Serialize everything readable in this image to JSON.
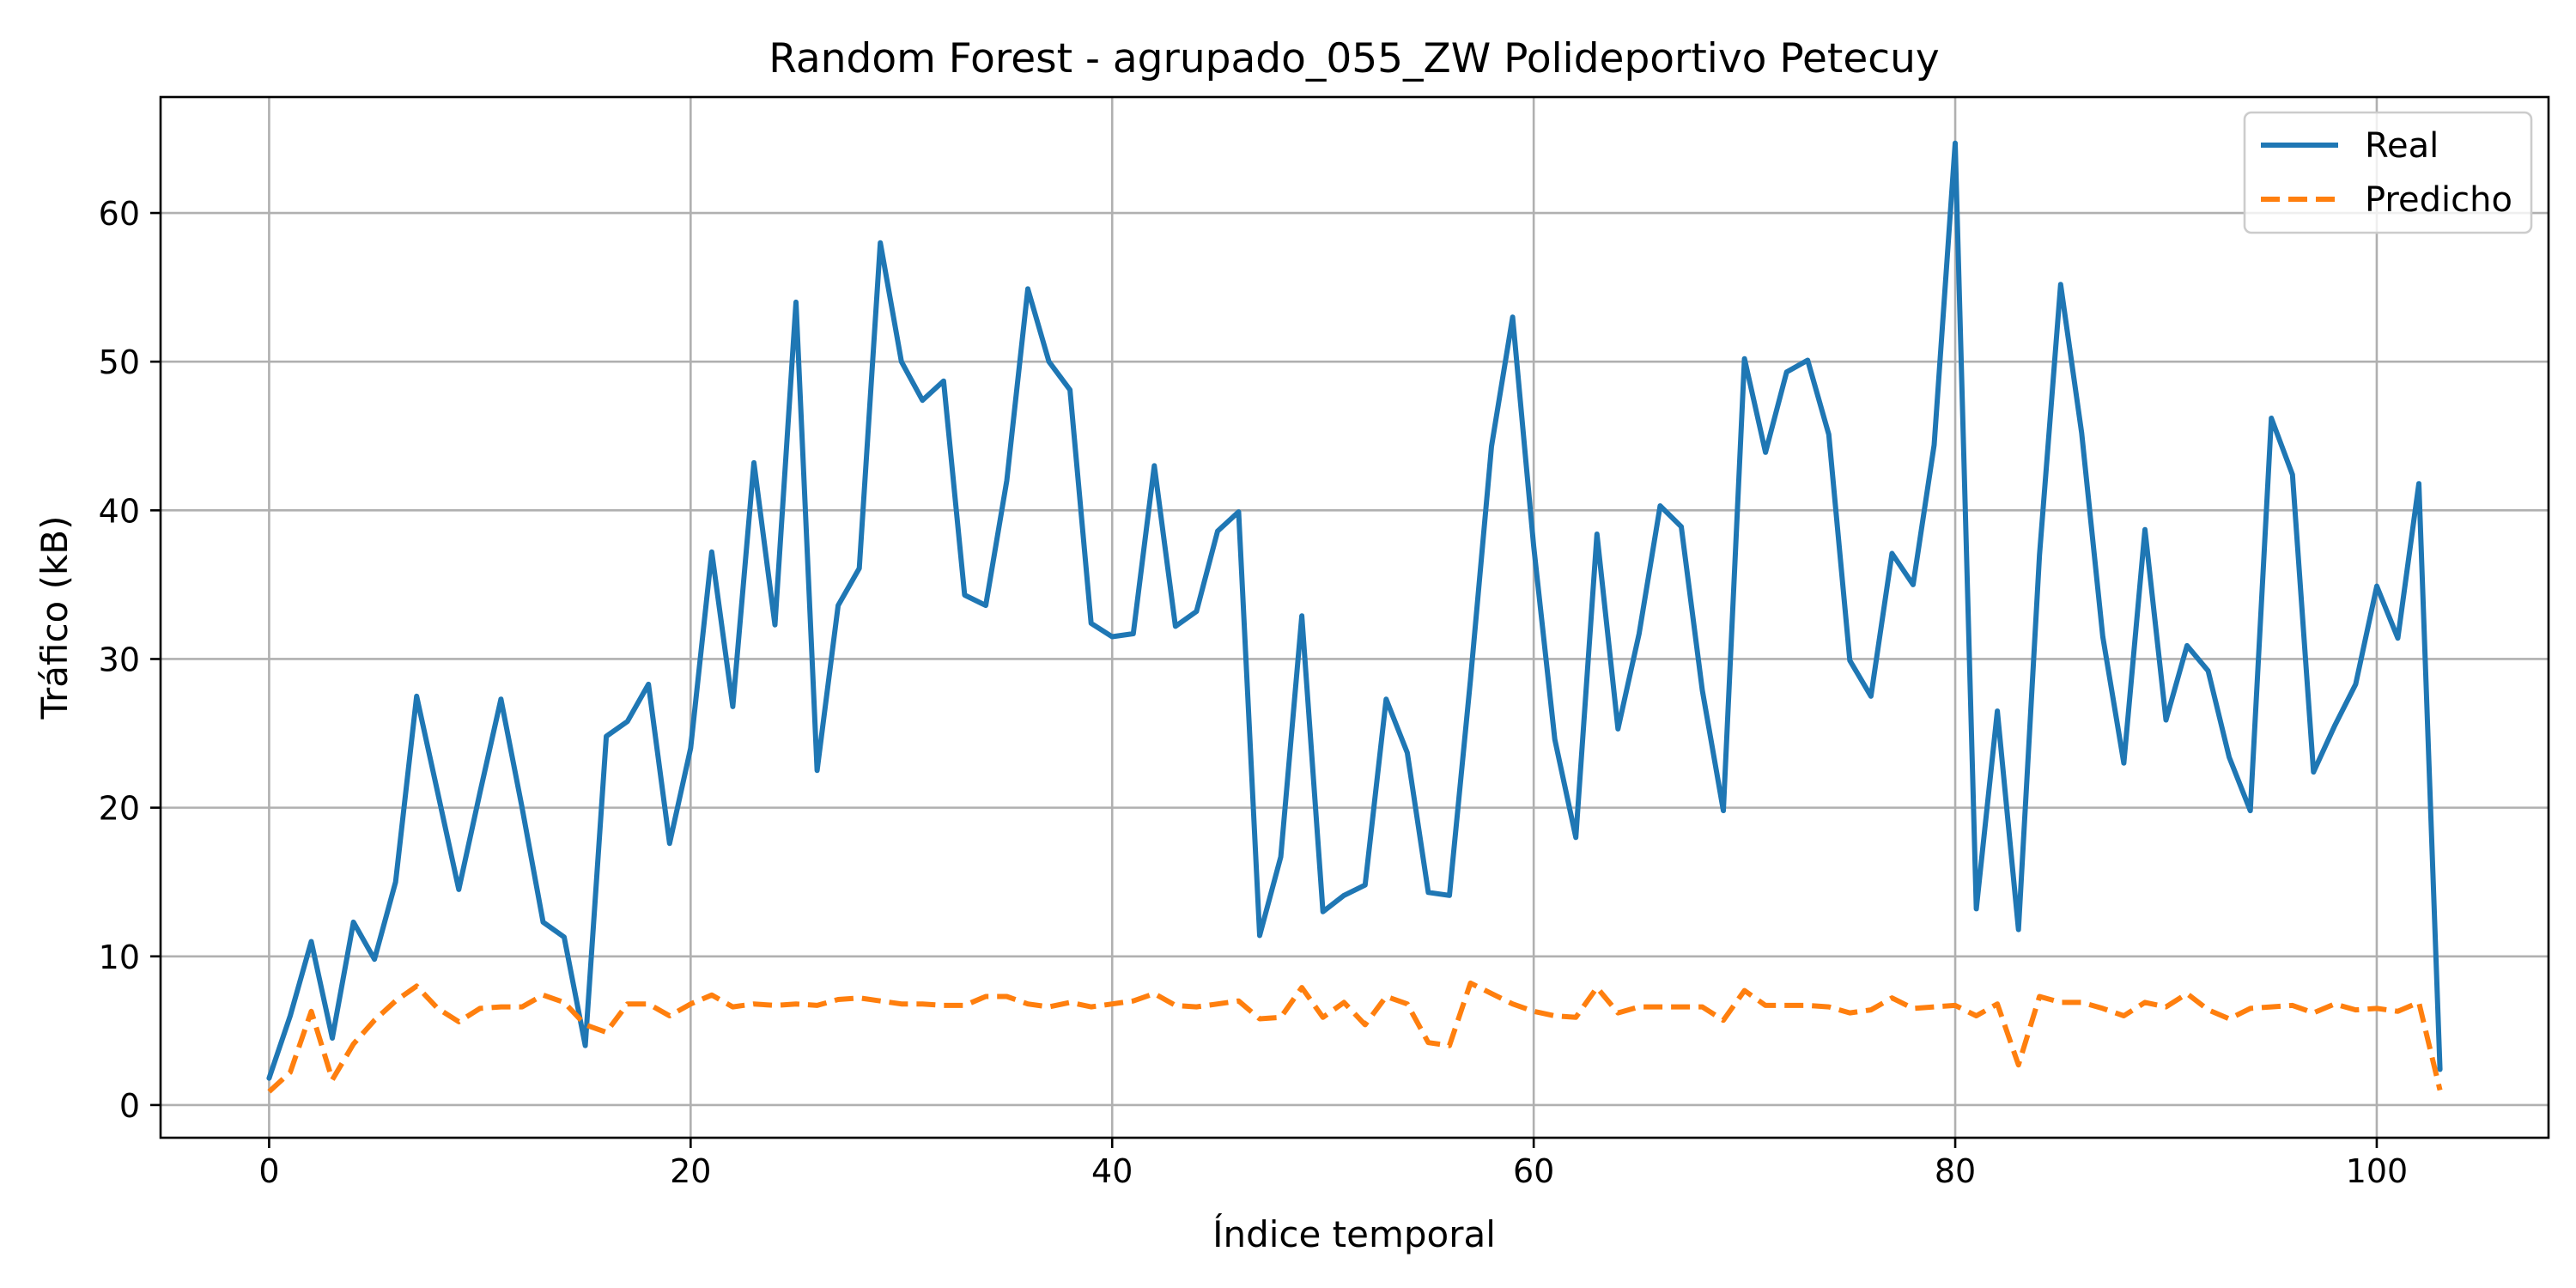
{
  "chart_data": {
    "type": "line",
    "title": "Random Forest - agrupado_055_ZW Polideportivo Petecuy",
    "xlabel": "Índice temporal",
    "ylabel": "Tráfico (kB)",
    "xlim": [
      -5.15,
      108.15
    ],
    "ylim": [
      -2.2,
      67.8
    ],
    "x_ticks": [
      0,
      20,
      40,
      60,
      80,
      100
    ],
    "y_ticks": [
      0,
      10,
      20,
      30,
      40,
      50,
      60
    ],
    "grid": true,
    "legend_position": "top-right",
    "series": [
      {
        "name": "Real",
        "color": "#1f77b4",
        "style": "solid",
        "values": [
          1.8,
          6.0,
          11.0,
          4.5,
          12.3,
          9.8,
          15.0,
          27.5,
          21.0,
          14.5,
          21.0,
          27.3,
          20.0,
          12.3,
          11.3,
          4.0,
          24.8,
          25.8,
          28.3,
          17.6,
          24.0,
          37.2,
          26.8,
          43.2,
          32.3,
          54.0,
          22.5,
          33.6,
          36.1,
          58.0,
          50.0,
          47.4,
          48.7,
          34.3,
          33.6,
          42.0,
          54.9,
          50.0,
          48.1,
          32.4,
          31.5,
          31.7,
          43.0,
          32.2,
          33.2,
          38.6,
          39.9,
          11.4,
          16.7,
          32.9,
          13.0,
          14.1,
          14.8,
          27.3,
          23.7,
          14.3,
          14.1,
          28.6,
          44.3,
          53.0,
          37.6,
          24.6,
          18.0,
          38.4,
          25.3,
          31.7,
          40.3,
          38.9,
          27.9,
          19.8,
          50.2,
          43.9,
          49.3,
          50.1,
          45.1,
          29.9,
          27.5,
          37.1,
          35.0,
          44.4,
          64.7,
          13.2,
          26.5,
          11.8,
          37.0,
          55.2,
          45.2,
          31.5,
          23.0,
          38.7,
          25.9,
          30.9,
          29.2,
          23.4,
          19.8,
          46.2,
          42.4,
          22.4,
          25.5,
          28.3,
          34.9,
          31.4,
          41.8,
          2.4
        ]
      },
      {
        "name": "Predicho",
        "color": "#ff7f0e",
        "style": "dashed",
        "values": [
          0.9,
          2.2,
          6.3,
          1.7,
          4.1,
          5.7,
          7.0,
          8.0,
          6.5,
          5.6,
          6.5,
          6.6,
          6.6,
          7.4,
          6.9,
          5.4,
          4.9,
          6.8,
          6.8,
          6.0,
          6.8,
          7.4,
          6.6,
          6.8,
          6.7,
          6.8,
          6.7,
          7.1,
          7.2,
          7.0,
          6.8,
          6.8,
          6.7,
          6.7,
          7.3,
          7.3,
          6.8,
          6.6,
          6.9,
          6.6,
          6.8,
          7.0,
          7.5,
          6.7,
          6.6,
          6.8,
          7.0,
          5.8,
          5.9,
          7.9,
          5.9,
          6.9,
          5.4,
          7.3,
          6.8,
          4.2,
          4.0,
          8.2,
          7.5,
          6.8,
          6.3,
          6.0,
          5.9,
          7.9,
          6.2,
          6.6,
          6.6,
          6.6,
          6.6,
          5.7,
          7.7,
          6.7,
          6.7,
          6.7,
          6.6,
          6.2,
          6.4,
          7.2,
          6.5,
          6.6,
          6.7,
          6.0,
          6.8,
          2.7,
          7.3,
          6.9,
          6.9,
          6.5,
          6.0,
          6.9,
          6.6,
          7.5,
          6.4,
          5.8,
          6.5,
          6.6,
          6.7,
          6.2,
          6.8,
          6.4,
          6.5,
          6.3,
          6.9,
          1.0
        ]
      }
    ]
  }
}
